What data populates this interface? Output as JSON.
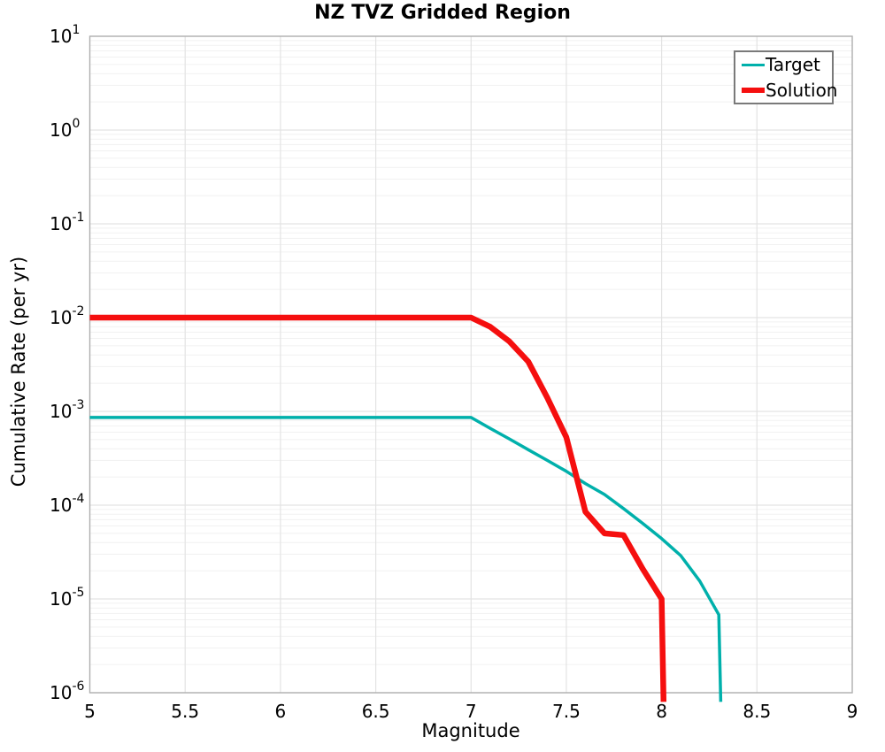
{
  "title": "NZ TVZ Gridded Region",
  "chart_data": {
    "type": "line",
    "title": "NZ TVZ Gridded Region",
    "xlabel": "Magnitude",
    "ylabel": "Cumulative Rate (per yr)",
    "xlim": [
      5,
      9
    ],
    "ylim": [
      1e-06,
      10
    ],
    "y_scale": "log",
    "x_ticks": [
      5,
      5.5,
      6,
      6.5,
      7,
      7.5,
      8,
      8.5,
      9
    ],
    "y_tick_exponents": [
      1,
      0,
      -1,
      -2,
      -3,
      -4,
      -5,
      -6
    ],
    "grid": true,
    "legend_position": "top-right",
    "series": [
      {
        "name": "Target",
        "color": "#00b0ab",
        "linewidth": 3.5,
        "points": [
          [
            5.0,
            0.00086
          ],
          [
            7.0,
            0.00086
          ],
          [
            7.1,
            0.00066
          ],
          [
            7.2,
            0.00051
          ],
          [
            7.3,
            0.00039
          ],
          [
            7.4,
            0.0003
          ],
          [
            7.5,
            0.00023
          ],
          [
            7.6,
            0.00017
          ],
          [
            7.7,
            0.00013
          ],
          [
            7.8,
            9.2e-05
          ],
          [
            7.9,
            6.4e-05
          ],
          [
            8.0,
            4.4e-05
          ],
          [
            8.1,
            2.9e-05
          ],
          [
            8.2,
            1.55e-05
          ],
          [
            8.3,
            6.8e-06
          ],
          [
            8.31,
            8e-07
          ]
        ]
      },
      {
        "name": "Solution",
        "color": "#f50f0f",
        "linewidth": 6.5,
        "points": [
          [
            5.0,
            0.01
          ],
          [
            7.0,
            0.01
          ],
          [
            7.1,
            0.008
          ],
          [
            7.2,
            0.0056
          ],
          [
            7.3,
            0.0034
          ],
          [
            7.4,
            0.0014
          ],
          [
            7.5,
            0.00053
          ],
          [
            7.6,
            8.5e-05
          ],
          [
            7.7,
            5e-05
          ],
          [
            7.8,
            4.8e-05
          ],
          [
            7.9,
            2.1e-05
          ],
          [
            8.0,
            1e-05
          ],
          [
            8.01,
            8e-07
          ]
        ]
      }
    ]
  }
}
